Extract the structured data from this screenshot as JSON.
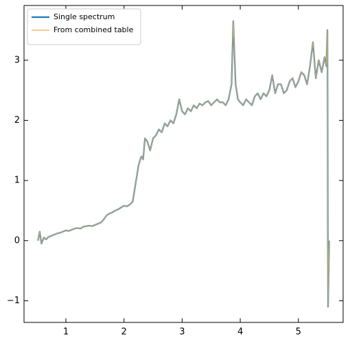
{
  "chart_data": {
    "type": "line",
    "x": [
      0.52,
      0.55,
      0.58,
      0.62,
      0.66,
      0.7,
      0.75,
      0.8,
      0.85,
      0.9,
      0.95,
      1.0,
      1.05,
      1.1,
      1.15,
      1.2,
      1.25,
      1.3,
      1.35,
      1.4,
      1.45,
      1.5,
      1.55,
      1.6,
      1.65,
      1.7,
      1.75,
      1.8,
      1.85,
      1.9,
      1.95,
      2.0,
      2.05,
      2.1,
      2.15,
      2.2,
      2.25,
      2.28,
      2.3,
      2.33,
      2.36,
      2.4,
      2.45,
      2.5,
      2.55,
      2.6,
      2.65,
      2.7,
      2.75,
      2.8,
      2.85,
      2.9,
      2.95,
      3.0,
      3.05,
      3.1,
      3.15,
      3.2,
      3.25,
      3.3,
      3.35,
      3.4,
      3.45,
      3.5,
      3.55,
      3.6,
      3.65,
      3.7,
      3.75,
      3.8,
      3.85,
      3.88,
      3.92,
      3.96,
      4.0,
      4.05,
      4.1,
      4.15,
      4.2,
      4.25,
      4.3,
      4.35,
      4.4,
      4.45,
      4.5,
      4.55,
      4.6,
      4.65,
      4.7,
      4.75,
      4.8,
      4.85,
      4.9,
      4.95,
      5.0,
      5.05,
      5.1,
      5.15,
      5.2,
      5.25,
      5.3,
      5.35,
      5.4,
      5.45,
      5.48,
      5.5,
      5.51,
      5.53
    ],
    "series": [
      {
        "name": "Single spectrum",
        "color": "#1f77b4",
        "values": [
          0.0,
          0.15,
          -0.05,
          0.05,
          0.02,
          0.06,
          0.08,
          0.1,
          0.12,
          0.13,
          0.15,
          0.17,
          0.16,
          0.18,
          0.2,
          0.21,
          0.2,
          0.23,
          0.24,
          0.25,
          0.24,
          0.26,
          0.28,
          0.3,
          0.35,
          0.42,
          0.45,
          0.47,
          0.5,
          0.52,
          0.55,
          0.58,
          0.57,
          0.6,
          0.65,
          0.95,
          1.25,
          1.35,
          1.4,
          1.35,
          1.7,
          1.65,
          1.5,
          1.7,
          1.75,
          1.85,
          1.8,
          1.95,
          1.9,
          2.0,
          1.95,
          2.1,
          2.35,
          2.15,
          2.1,
          2.2,
          2.15,
          2.25,
          2.2,
          2.28,
          2.25,
          2.3,
          2.32,
          2.25,
          2.3,
          2.35,
          2.3,
          2.3,
          2.25,
          2.35,
          2.6,
          3.65,
          2.6,
          2.35,
          2.3,
          2.25,
          2.35,
          2.3,
          2.25,
          2.4,
          2.45,
          2.35,
          2.45,
          2.4,
          2.5,
          2.75,
          2.45,
          2.6,
          2.6,
          2.45,
          2.5,
          2.65,
          2.7,
          2.55,
          2.65,
          2.8,
          2.75,
          2.6,
          2.9,
          3.3,
          2.7,
          3.0,
          2.8,
          3.05,
          2.9,
          3.5,
          -1.1,
          0.0
        ]
      },
      {
        "name": "From combined table",
        "color": "#f5b860",
        "values": [
          0.0,
          0.15,
          -0.05,
          0.05,
          0.02,
          0.06,
          0.08,
          0.1,
          0.12,
          0.13,
          0.15,
          0.17,
          0.16,
          0.18,
          0.2,
          0.21,
          0.2,
          0.23,
          0.24,
          0.25,
          0.24,
          0.26,
          0.28,
          0.3,
          0.35,
          0.42,
          0.45,
          0.47,
          0.5,
          0.52,
          0.55,
          0.58,
          0.57,
          0.6,
          0.65,
          0.95,
          1.25,
          1.35,
          1.4,
          1.35,
          1.7,
          1.65,
          1.5,
          1.7,
          1.75,
          1.85,
          1.8,
          1.95,
          1.9,
          2.0,
          1.95,
          2.1,
          2.35,
          2.15,
          2.1,
          2.2,
          2.15,
          2.25,
          2.2,
          2.28,
          2.25,
          2.3,
          2.32,
          2.25,
          2.3,
          2.35,
          2.3,
          2.3,
          2.25,
          2.35,
          2.6,
          3.65,
          2.6,
          2.35,
          2.3,
          2.25,
          2.35,
          2.3,
          2.25,
          2.4,
          2.45,
          2.35,
          2.45,
          2.4,
          2.5,
          2.75,
          2.45,
          2.6,
          2.6,
          2.45,
          2.5,
          2.65,
          2.7,
          2.55,
          2.65,
          2.8,
          2.75,
          2.6,
          2.9,
          3.3,
          2.7,
          3.0,
          2.8,
          3.05,
          2.9,
          3.5,
          -1.1,
          0.0
        ]
      }
    ],
    "xlim": [
      0.28,
      5.77
    ],
    "xticks": [
      1,
      2,
      3,
      4,
      5
    ],
    "ylim": [
      -1.36,
      3.91
    ],
    "yticks": [
      {
        "value": -1,
        "label": "−1"
      },
      0,
      1,
      2,
      3
    ],
    "legend": "upper left"
  }
}
